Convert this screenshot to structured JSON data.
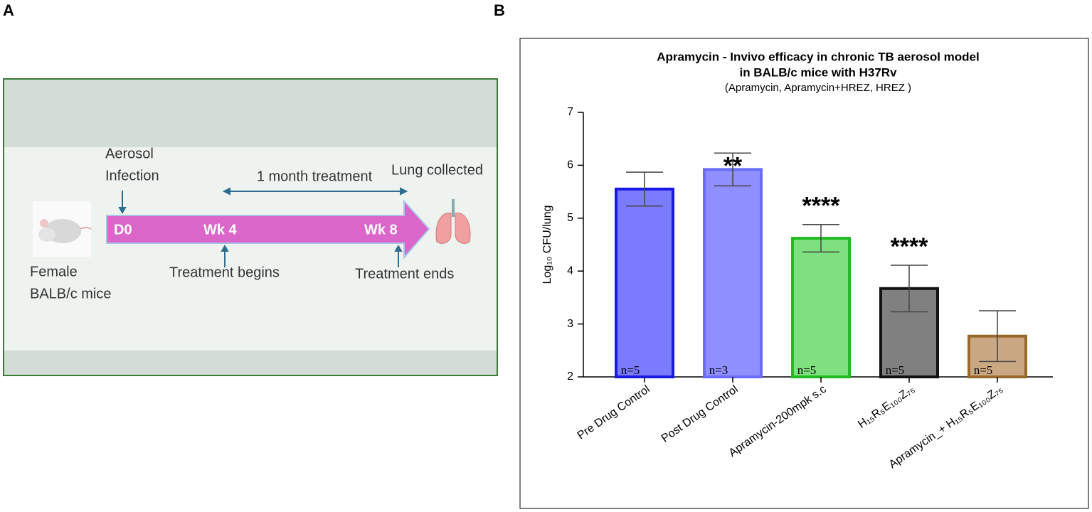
{
  "panel_a": {
    "label": "A",
    "aerosol": [
      "Aerosol",
      "Infection"
    ],
    "duration": "1 month treatment",
    "lung": "Lung collected",
    "timepoints": [
      "D0",
      "Wk 4",
      "Wk 8"
    ],
    "mice": [
      "Female",
      "BALB/c mice"
    ],
    "treatment_begins": "Treatment begins",
    "treatment_ends": "Treatment ends"
  },
  "chart_data": {
    "type": "bar",
    "label": "B",
    "title": [
      "Apramycin - Invivo efficacy in chronic TB aerosol model",
      "in BALB/c mice with H37Rv"
    ],
    "subtitle": "(Apramycin, Apramycin+HREZ, HREZ )",
    "y_label": "Log₁₀ CFU/lung",
    "categories": [
      "Pre Drug Control",
      "Post Drug Control",
      "Apramycin-200mpk s.c",
      "H₁₅R₅E₁₀₀Z₇₅",
      "Apramycin_+ H₁₅R₅E₁₀₀Z₇₅"
    ],
    "values": [
      5.55,
      5.92,
      4.62,
      3.67,
      2.77
    ],
    "errors": [
      0.32,
      0.31,
      0.26,
      0.44,
      0.48
    ],
    "colors": [
      "#7b7bff",
      "#8f8fff",
      "#7ee07e",
      "#808080",
      "#c9a883"
    ],
    "edge_colors": [
      "#1a1ae6",
      "#6b6bff",
      "#22bb22",
      "#111111",
      "#9a6a2a"
    ],
    "n_labels": [
      "n=5",
      "n=3",
      "n=5",
      "n=5",
      "n=5"
    ],
    "significance": [
      null,
      "**",
      "****",
      "****",
      null
    ],
    "ylim": [
      2,
      7
    ],
    "yticks": [
      2,
      3,
      4,
      5,
      6,
      7
    ]
  }
}
